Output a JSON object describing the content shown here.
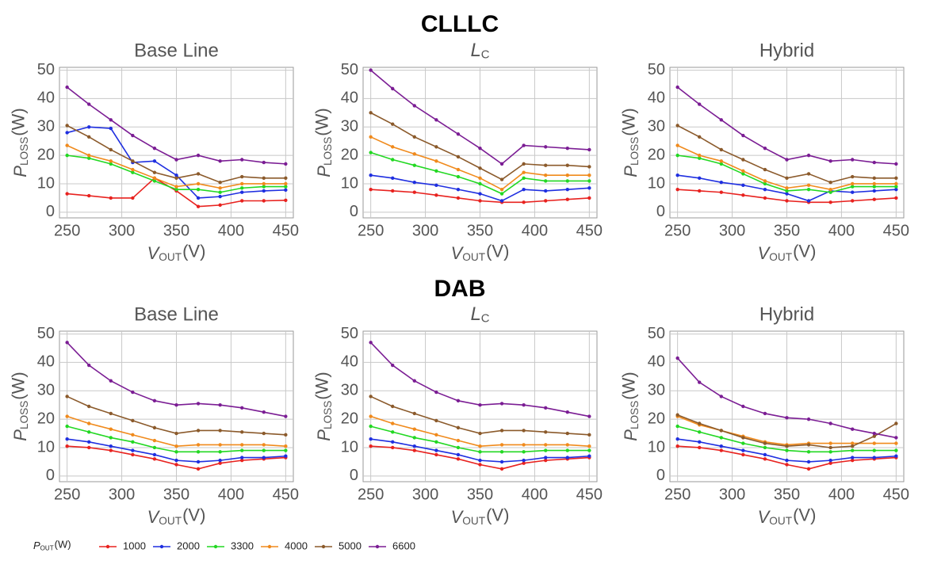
{
  "sections": [
    "CLLLC",
    "DAB"
  ],
  "legend": {
    "title": {
      "main": "P",
      "sub": "OUT",
      "unit": "(W)"
    },
    "names": [
      "1000",
      "2000",
      "3300",
      "4000",
      "5000",
      "6600"
    ]
  },
  "chart_data": [
    {
      "type": "line",
      "title": "Base Line",
      "xlabel": {
        "main": "V",
        "sub": "OUT",
        "unit": "(V)"
      },
      "ylabel": {
        "main": "P",
        "sub": "LOSS",
        "unit": "(W)"
      },
      "x": [
        250,
        270,
        290,
        310,
        330,
        350,
        370,
        390,
        410,
        430,
        450
      ],
      "xlim": [
        243,
        457
      ],
      "ylim": [
        -2,
        51
      ],
      "xticks": [
        250,
        300,
        350,
        400,
        450
      ],
      "yticks": [
        0,
        10,
        20,
        30,
        40,
        50
      ],
      "grid": true,
      "series": [
        {
          "color": "#e8221f",
          "values": [
            6.5,
            5.8,
            5,
            5,
            12,
            7.5,
            2,
            2.5,
            4,
            4,
            4.2
          ]
        },
        {
          "color": "#1f2fe0",
          "values": [
            28,
            30,
            29.5,
            17.5,
            18,
            13,
            5,
            5.5,
            7,
            7.5,
            7.8
          ]
        },
        {
          "color": "#22d822",
          "values": [
            20,
            19,
            17,
            14,
            11,
            8,
            8,
            7,
            8.5,
            9,
            9
          ]
        },
        {
          "color": "#f08a1c",
          "values": [
            23.5,
            20,
            18,
            15,
            12,
            9,
            10,
            8.5,
            10,
            10,
            10
          ]
        },
        {
          "color": "#8b5a2b",
          "values": [
            30.5,
            26.5,
            22,
            18,
            14,
            12,
            13.5,
            10.5,
            12.5,
            12,
            12
          ]
        },
        {
          "color": "#7b1d94",
          "values": [
            44,
            38,
            32.5,
            27,
            22.5,
            18.5,
            20,
            18,
            18.5,
            17.5,
            17
          ]
        }
      ]
    },
    {
      "type": "line",
      "title": {
        "main": "L",
        "sub": "C"
      },
      "xlabel": {
        "main": "V",
        "sub": "OUT",
        "unit": "(V)"
      },
      "ylabel": {
        "main": "P",
        "sub": "LOSS",
        "unit": "(W)"
      },
      "x": [
        250,
        270,
        290,
        310,
        330,
        350,
        370,
        390,
        410,
        430,
        450
      ],
      "xlim": [
        243,
        457
      ],
      "ylim": [
        -2,
        51
      ],
      "xticks": [
        250,
        300,
        350,
        400,
        450
      ],
      "yticks": [
        0,
        10,
        20,
        30,
        40,
        50
      ],
      "grid": true,
      "series": [
        {
          "color": "#e8221f",
          "values": [
            8,
            7.5,
            7,
            6,
            5,
            4,
            3.5,
            3.5,
            4,
            4.5,
            5
          ]
        },
        {
          "color": "#1f2fe0",
          "values": [
            13,
            12,
            10.5,
            9.5,
            8,
            6.5,
            4,
            8,
            7.5,
            8,
            8.5
          ]
        },
        {
          "color": "#22d822",
          "values": [
            21,
            18.5,
            16.5,
            14.5,
            12.5,
            10,
            6.5,
            12,
            11,
            11,
            11
          ]
        },
        {
          "color": "#f08a1c",
          "values": [
            26.5,
            23,
            20.5,
            18,
            15,
            12,
            8,
            14,
            13,
            13,
            13
          ]
        },
        {
          "color": "#8b5a2b",
          "values": [
            35,
            31,
            26.5,
            23,
            19.5,
            15.5,
            11.5,
            17,
            16.5,
            16.5,
            16
          ]
        },
        {
          "color": "#7b1d94",
          "values": [
            50,
            43.5,
            37.5,
            32.5,
            27.5,
            22.5,
            17,
            23.5,
            23,
            22.5,
            22
          ]
        }
      ]
    },
    {
      "type": "line",
      "title": "Hybrid",
      "xlabel": {
        "main": "V",
        "sub": "OUT",
        "unit": "(V)"
      },
      "ylabel": {
        "main": "P",
        "sub": "LOSS",
        "unit": "(W)"
      },
      "x": [
        250,
        270,
        290,
        310,
        330,
        350,
        370,
        390,
        410,
        430,
        450
      ],
      "xlim": [
        243,
        457
      ],
      "ylim": [
        -2,
        51
      ],
      "xticks": [
        250,
        300,
        350,
        400,
        450
      ],
      "yticks": [
        0,
        10,
        20,
        30,
        40,
        50
      ],
      "grid": true,
      "series": [
        {
          "color": "#e8221f",
          "values": [
            8,
            7.5,
            7,
            6,
            5,
            4,
            3.5,
            3.5,
            4,
            4.5,
            5
          ]
        },
        {
          "color": "#1f2fe0",
          "values": [
            13,
            12,
            10.5,
            9.5,
            8,
            6.5,
            4,
            7.5,
            7,
            7.5,
            8
          ]
        },
        {
          "color": "#22d822",
          "values": [
            20,
            19,
            17,
            13.5,
            10,
            7.5,
            8,
            7,
            9,
            9,
            9
          ]
        },
        {
          "color": "#f08a1c",
          "values": [
            23.5,
            20,
            18,
            14.5,
            11,
            8.5,
            9.5,
            8,
            10,
            10,
            10
          ]
        },
        {
          "color": "#8b5a2b",
          "values": [
            30.5,
            26.5,
            22,
            18.5,
            15,
            12,
            13.5,
            10.5,
            12.5,
            12,
            12
          ]
        },
        {
          "color": "#7b1d94",
          "values": [
            44,
            38,
            32.5,
            27,
            22.5,
            18.5,
            20,
            18,
            18.5,
            17.5,
            17
          ]
        }
      ]
    },
    {
      "type": "line",
      "title": "Base Line",
      "xlabel": {
        "main": "V",
        "sub": "OUT",
        "unit": "(V)"
      },
      "ylabel": {
        "main": "P",
        "sub": "LOSS",
        "unit": "(W)"
      },
      "x": [
        250,
        270,
        290,
        310,
        330,
        350,
        370,
        390,
        410,
        430,
        450
      ],
      "xlim": [
        243,
        457
      ],
      "ylim": [
        -2,
        51
      ],
      "xticks": [
        250,
        300,
        350,
        400,
        450
      ],
      "yticks": [
        0,
        10,
        20,
        30,
        40,
        50
      ],
      "grid": true,
      "series": [
        {
          "color": "#e8221f",
          "values": [
            10.5,
            10,
            9,
            7.5,
            6,
            4,
            2.5,
            4.5,
            5.5,
            6,
            6.5
          ]
        },
        {
          "color": "#1f2fe0",
          "values": [
            13,
            12,
            10.5,
            9,
            7.5,
            5.5,
            5,
            5.5,
            6.5,
            6.5,
            7
          ]
        },
        {
          "color": "#22d822",
          "values": [
            17.5,
            15.5,
            13.5,
            12,
            10,
            8.5,
            8.5,
            8.5,
            9,
            9,
            9
          ]
        },
        {
          "color": "#f08a1c",
          "values": [
            21,
            18.5,
            16.5,
            14.5,
            12.5,
            10.5,
            11,
            11,
            11,
            11,
            10.5
          ]
        },
        {
          "color": "#8b5a2b",
          "values": [
            28,
            24.5,
            22,
            19.5,
            17,
            15,
            16,
            16,
            15.5,
            15,
            14.5
          ]
        },
        {
          "color": "#7b1d94",
          "values": [
            47,
            39,
            33.5,
            29.5,
            26.5,
            25,
            25.5,
            25,
            24,
            22.5,
            21
          ]
        }
      ]
    },
    {
      "type": "line",
      "title": {
        "main": "L",
        "sub": "C"
      },
      "xlabel": {
        "main": "V",
        "sub": "OUT",
        "unit": "(V)"
      },
      "ylabel": {
        "main": "P",
        "sub": "LOSS",
        "unit": "(W)"
      },
      "x": [
        250,
        270,
        290,
        310,
        330,
        350,
        370,
        390,
        410,
        430,
        450
      ],
      "xlim": [
        243,
        457
      ],
      "ylim": [
        -2,
        51
      ],
      "xticks": [
        250,
        300,
        350,
        400,
        450
      ],
      "yticks": [
        0,
        10,
        20,
        30,
        40,
        50
      ],
      "grid": true,
      "series": [
        {
          "color": "#e8221f",
          "values": [
            10.5,
            10,
            9,
            7.5,
            6,
            4,
            2.5,
            4.5,
            5.5,
            6,
            6.5
          ]
        },
        {
          "color": "#1f2fe0",
          "values": [
            13,
            12,
            10.5,
            9,
            7.5,
            5.5,
            5,
            5.5,
            6.5,
            6.5,
            7
          ]
        },
        {
          "color": "#22d822",
          "values": [
            17.5,
            15.5,
            13.5,
            12,
            10,
            8.5,
            8.5,
            8.5,
            9,
            9,
            9
          ]
        },
        {
          "color": "#f08a1c",
          "values": [
            21,
            18.5,
            16.5,
            14.5,
            12.5,
            10.5,
            11,
            11,
            11,
            11,
            10.5
          ]
        },
        {
          "color": "#8b5a2b",
          "values": [
            28,
            24.5,
            22,
            19.5,
            17,
            15,
            16,
            16,
            15.5,
            15,
            14.5
          ]
        },
        {
          "color": "#7b1d94",
          "values": [
            47,
            39,
            33.5,
            29.5,
            26.5,
            25,
            25.5,
            25,
            24,
            22.5,
            21
          ]
        }
      ]
    },
    {
      "type": "line",
      "title": "Hybrid",
      "xlabel": {
        "main": "V",
        "sub": "OUT",
        "unit": "(V)"
      },
      "ylabel": {
        "main": "P",
        "sub": "LOSS",
        "unit": "(W)"
      },
      "x": [
        250,
        270,
        290,
        310,
        330,
        350,
        370,
        390,
        410,
        430,
        450
      ],
      "xlim": [
        243,
        457
      ],
      "ylim": [
        -2,
        51
      ],
      "xticks": [
        250,
        300,
        350,
        400,
        450
      ],
      "yticks": [
        0,
        10,
        20,
        30,
        40,
        50
      ],
      "grid": true,
      "series": [
        {
          "color": "#e8221f",
          "values": [
            10.5,
            10,
            9,
            7.5,
            6,
            4,
            2.5,
            4.5,
            5.5,
            6,
            6.5
          ]
        },
        {
          "color": "#1f2fe0",
          "values": [
            13,
            12,
            10.5,
            9,
            7.5,
            5.5,
            5,
            5.5,
            6.5,
            6.5,
            7
          ]
        },
        {
          "color": "#22d822",
          "values": [
            17.5,
            15.5,
            13.5,
            11.5,
            10,
            9,
            8.5,
            8.5,
            9,
            9,
            9
          ]
        },
        {
          "color": "#f08a1c",
          "values": [
            21,
            18,
            16,
            14,
            12,
            11,
            11.5,
            11.5,
            11.5,
            11.5,
            11.5
          ]
        },
        {
          "color": "#8b5a2b",
          "values": [
            21.5,
            18.5,
            16,
            13.5,
            11.5,
            10.5,
            11,
            10,
            10.5,
            14,
            18.5
          ]
        },
        {
          "color": "#7b1d94",
          "values": [
            41.5,
            33,
            28,
            24.5,
            22,
            20.5,
            20,
            18.5,
            16.5,
            15,
            13.5
          ]
        }
      ]
    }
  ]
}
